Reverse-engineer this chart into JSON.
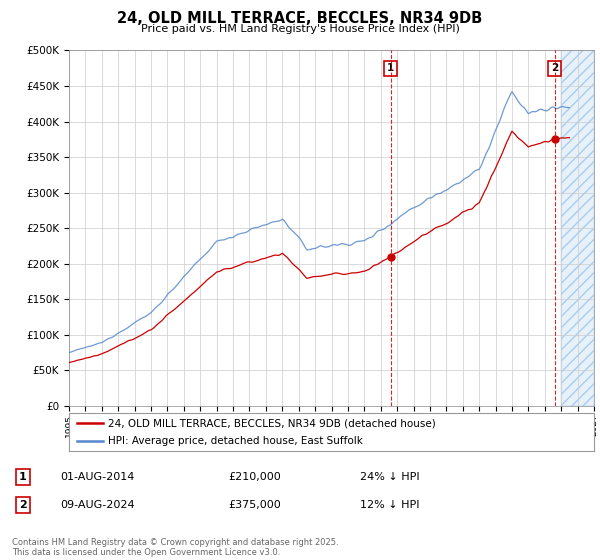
{
  "title": "24, OLD MILL TERRACE, BECCLES, NR34 9DB",
  "subtitle": "Price paid vs. HM Land Registry's House Price Index (HPI)",
  "legend_line1": "24, OLD MILL TERRACE, BECCLES, NR34 9DB (detached house)",
  "legend_line2": "HPI: Average price, detached house, East Suffolk",
  "label1_date": "01-AUG-2014",
  "label1_price": "£210,000",
  "label1_hpi": "24% ↓ HPI",
  "label1_year": 2014.6,
  "label1_value": 210000,
  "label2_date": "09-AUG-2024",
  "label2_price": "£375,000",
  "label2_hpi": "12% ↓ HPI",
  "label2_year": 2024.6,
  "label2_value": 375000,
  "footer": "Contains HM Land Registry data © Crown copyright and database right 2025.\nThis data is licensed under the Open Government Licence v3.0.",
  "hpi_color": "#5588CC",
  "price_color": "#CC0000",
  "future_fill_color": "#D8E8F8",
  "ylim": [
    0,
    500000
  ],
  "xlim_start": 1995,
  "xlim_end": 2027
}
